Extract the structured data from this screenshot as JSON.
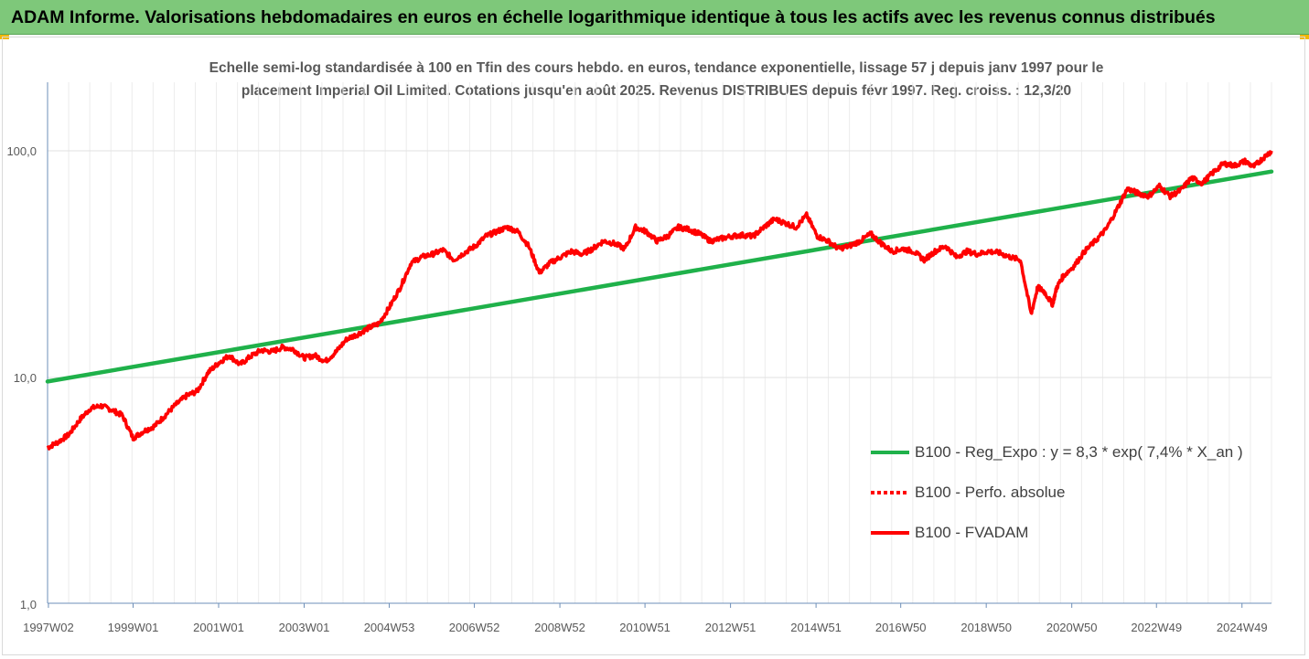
{
  "banner": {
    "title": "ADAM Informe. Valorisations hebdomadaires en euros en échelle logarithmique identique à tous les actifs avec les revenus connus distribués"
  },
  "colors": {
    "banner_bg": "#7ec87a",
    "corner_accent": "#f2b705",
    "trend_line": "#1fb14a",
    "price_line": "#ff0000",
    "text": "#595959"
  },
  "chart_data": {
    "type": "line",
    "title": "Echelle semi-log standardisée à 100 en Tfin des cours hebdo. en euros, tendance exponentielle, lissage 57 j depuis janv 1997 pour le placement Imperial Oil Limited. Cotations jusqu'en août 2025. Revenus DISTRIBUES depuis févr 1997. Reg. croiss. : 12,3/20",
    "title_lines": [
      "Echelle semi-log standardisée à 100 en Tfin des cours hebdo. en euros, tendance exponentielle, lissage 57 j depuis janv 1997 pour le",
      "placement Imperial Oil Limited. Cotations jusqu'en août 2025. Revenus DISTRIBUES depuis févr 1997. Reg. croiss. : 12,3/20"
    ],
    "xlabel": "",
    "ylabel": "",
    "y_scale": "log",
    "ylim": [
      1,
      200
    ],
    "xlim": [
      1997.0,
      2025.62
    ],
    "y_ticks": [
      {
        "value": 1,
        "label": "1,0"
      },
      {
        "value": 10,
        "label": "10,0"
      },
      {
        "value": 100,
        "label": "100,0"
      }
    ],
    "x_ticks": [
      {
        "value": 1997.02,
        "label": "1997W02"
      },
      {
        "value": 1999.0,
        "label": "1999W01"
      },
      {
        "value": 2001.0,
        "label": "2001W01"
      },
      {
        "value": 2003.0,
        "label": "2003W01"
      },
      {
        "value": 2004.99,
        "label": "2004W53"
      },
      {
        "value": 2006.98,
        "label": "2006W52"
      },
      {
        "value": 2008.98,
        "label": "2008W52"
      },
      {
        "value": 2010.97,
        "label": "2010W51"
      },
      {
        "value": 2012.97,
        "label": "2012W51"
      },
      {
        "value": 2014.97,
        "label": "2014W51"
      },
      {
        "value": 2016.95,
        "label": "2016W50"
      },
      {
        "value": 2018.95,
        "label": "2018W50"
      },
      {
        "value": 2020.95,
        "label": "2020W50"
      },
      {
        "value": 2022.93,
        "label": "2022W49"
      },
      {
        "value": 2024.93,
        "label": "2024W49"
      }
    ],
    "grid": "vertical",
    "legend_position": "bottom-right",
    "series": [
      {
        "name": "B100 - Reg_Expo : y = 8,3 * exp( 7,4% *  X_an )",
        "style": "solid",
        "color": "#1fb14a",
        "x": [
          1997.0,
          2025.62
        ],
        "y": [
          9.6,
          81.0
        ]
      },
      {
        "name": "B100 - Perfo. absolue",
        "style": "dotted",
        "color": "#ff0000",
        "x": [],
        "y": []
      },
      {
        "name": "B100 - FVADAM",
        "style": "solid",
        "color": "#ff0000",
        "x": [
          1997.0,
          1997.25,
          1997.5,
          1997.75,
          1998.0,
          1998.25,
          1998.5,
          1998.75,
          1999.0,
          1999.25,
          1999.5,
          1999.75,
          2000.0,
          2000.25,
          2000.5,
          2000.75,
          2001.0,
          2001.25,
          2001.5,
          2001.75,
          2002.0,
          2002.25,
          2002.5,
          2002.75,
          2003.0,
          2003.25,
          2003.5,
          2003.75,
          2004.0,
          2004.25,
          2004.5,
          2004.75,
          2005.0,
          2005.25,
          2005.5,
          2005.75,
          2006.0,
          2006.25,
          2006.5,
          2006.75,
          2007.0,
          2007.25,
          2007.5,
          2007.75,
          2008.0,
          2008.25,
          2008.5,
          2008.75,
          2009.0,
          2009.25,
          2009.5,
          2009.75,
          2010.0,
          2010.25,
          2010.5,
          2010.75,
          2011.0,
          2011.25,
          2011.5,
          2011.75,
          2012.0,
          2012.25,
          2012.5,
          2012.75,
          2013.0,
          2013.25,
          2013.5,
          2013.75,
          2014.0,
          2014.25,
          2014.5,
          2014.75,
          2015.0,
          2015.25,
          2015.5,
          2015.75,
          2016.0,
          2016.25,
          2016.5,
          2016.75,
          2017.0,
          2017.25,
          2017.5,
          2017.75,
          2018.0,
          2018.25,
          2018.5,
          2018.75,
          2019.0,
          2019.25,
          2019.5,
          2019.75,
          2020.0,
          2020.15,
          2020.3,
          2020.5,
          2020.6,
          2020.75,
          2021.0,
          2021.25,
          2021.5,
          2021.75,
          2022.0,
          2022.25,
          2022.5,
          2022.75,
          2023.0,
          2023.25,
          2023.5,
          2023.75,
          2024.0,
          2024.25,
          2024.5,
          2024.75,
          2025.0,
          2025.2,
          2025.4,
          2025.62
        ],
        "y": [
          4.9,
          5.2,
          5.6,
          6.5,
          7.3,
          7.5,
          7.2,
          6.8,
          5.4,
          5.8,
          6.1,
          6.8,
          7.6,
          8.3,
          8.7,
          10.5,
          11.6,
          12.5,
          11.4,
          12.4,
          13.2,
          13.0,
          13.6,
          13.3,
          12.2,
          12.5,
          11.8,
          13.0,
          14.8,
          15.5,
          16.5,
          17.3,
          20.5,
          25.0,
          32.0,
          34.0,
          35.0,
          36.5,
          33.0,
          35.5,
          38.0,
          42.0,
          44.0,
          46.0,
          44.0,
          38.0,
          29.0,
          32.0,
          34.0,
          36.0,
          35.0,
          37.0,
          40.0,
          39.0,
          37.0,
          46.0,
          44.0,
          40.0,
          42.0,
          46.0,
          45.0,
          43.0,
          40.0,
          41.0,
          42.0,
          42.5,
          42.0,
          46.0,
          50.0,
          48.0,
          46.0,
          52.0,
          42.0,
          40.0,
          37.0,
          38.0,
          40.0,
          43.0,
          39.0,
          36.0,
          37.0,
          36.0,
          33.0,
          36.0,
          38.0,
          34.0,
          36.0,
          35.0,
          36.0,
          35.5,
          34.0,
          33.0,
          19.0,
          25.0,
          24.0,
          21.0,
          25.0,
          28.0,
          31.0,
          36.0,
          40.0,
          45.0,
          55.0,
          68.0,
          65.0,
          63.0,
          70.0,
          63.0,
          67.0,
          76.0,
          72.0,
          80.0,
          88.0,
          86.0,
          90.0,
          85.0,
          92.0,
          100.0
        ]
      }
    ]
  }
}
